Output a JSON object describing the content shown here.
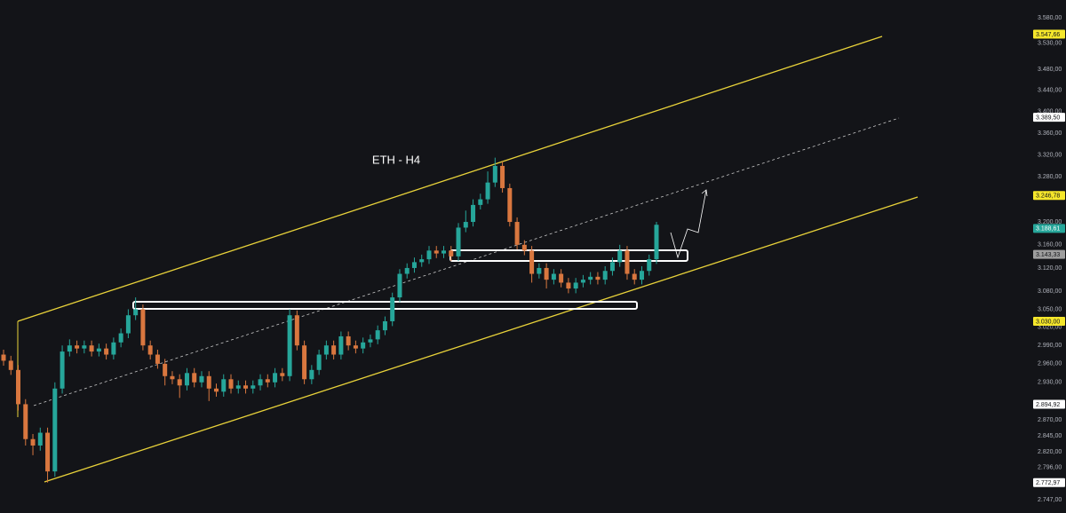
{
  "chart_data": {
    "type": "candlestick",
    "title": "ETH - H4",
    "log": true,
    "ylim": [
      2727,
      3615
    ],
    "up_color": "#26a69a",
    "down_color": "#d9773f",
    "yticks": [
      {
        "value": 3580,
        "label": "3.580,00"
      },
      {
        "value": 3530,
        "label": "3.530,00"
      },
      {
        "value": 3480,
        "label": "3.480,00"
      },
      {
        "value": 3440,
        "label": "3.440,00"
      },
      {
        "value": 3400,
        "label": "3.400,00"
      },
      {
        "value": 3360,
        "label": "3.360,00"
      },
      {
        "value": 3320,
        "label": "3.320,00"
      },
      {
        "value": 3280,
        "label": "3.280,00"
      },
      {
        "value": 3200,
        "label": "3.200,00"
      },
      {
        "value": 3160,
        "label": "3.160,00"
      },
      {
        "value": 3120,
        "label": "3.120,00"
      },
      {
        "value": 3080,
        "label": "3.080,00"
      },
      {
        "value": 3050,
        "label": "3.050,00"
      },
      {
        "value": 3020,
        "label": "3.020,00"
      },
      {
        "value": 2990,
        "label": "2.990,00"
      },
      {
        "value": 2960,
        "label": "2.960,00"
      },
      {
        "value": 2930,
        "label": "2.930,00"
      },
      {
        "value": 2870,
        "label": "2.870,00"
      },
      {
        "value": 2845,
        "label": "2.845,00"
      },
      {
        "value": 2820,
        "label": "2.820,00"
      },
      {
        "value": 2796,
        "label": "2.796,00"
      },
      {
        "value": 2747,
        "label": "2.747,00"
      }
    ],
    "price_labels": [
      {
        "value": 3547.66,
        "label": "3.547,66",
        "color": "#f5e72b"
      },
      {
        "value": 3389.5,
        "label": "3.389,50",
        "color": "#ffffff"
      },
      {
        "value": 3246.78,
        "label": "3.246,78",
        "color": "#f5e72b"
      },
      {
        "value": 3188.61,
        "label": "3.188,61",
        "color": "#26a69a"
      },
      {
        "value": 3143.33,
        "label": "3.143,33",
        "color": "#9e9e9e"
      },
      {
        "value": 3030,
        "label": "3.030,00",
        "color": "#f5e72b"
      },
      {
        "value": 2894.92,
        "label": "2.894,92",
        "color": "#ffffff"
      },
      {
        "value": 2772.97,
        "label": "2.772,97",
        "color": "#ffffff"
      }
    ],
    "open": [
      2975,
      2965,
      2950,
      2895,
      2840,
      2830,
      2850,
      2790,
      2920,
      2980,
      2990,
      2985,
      2990,
      2980,
      2985,
      2975,
      2995,
      3010,
      3040,
      3050,
      2990,
      2975,
      2960,
      2940,
      2935,
      2925,
      2945,
      2930,
      2940,
      2920,
      2915,
      2935,
      2920,
      2925,
      2920,
      2925,
      2935,
      2930,
      2945,
      2940,
      3040,
      2990,
      2935,
      2950,
      2975,
      2990,
      2975,
      3005,
      2990,
      2985,
      2995,
      3000,
      3015,
      3030,
      3070,
      3110,
      3120,
      3130,
      3135,
      3150,
      3145,
      3150,
      3140,
      3190,
      3200,
      3230,
      3240,
      3270,
      3300,
      3260,
      3200,
      3160,
      3150,
      3110,
      3120,
      3100,
      3110,
      3095,
      3085,
      3095,
      3100,
      3105,
      3100,
      3115,
      3130,
      3150,
      3110,
      3100,
      3115,
      3135
    ],
    "high": [
      2983,
      2973,
      2958,
      2903,
      2848,
      2858,
      2858,
      2930,
      2990,
      3000,
      2998,
      2998,
      2998,
      2993,
      2993,
      3003,
      3018,
      3050,
      3070,
      3058,
      2998,
      2983,
      2968,
      2948,
      2943,
      2953,
      2953,
      2948,
      2948,
      2928,
      2943,
      2943,
      2933,
      2933,
      2933,
      2943,
      2943,
      2953,
      2953,
      3050,
      3048,
      2998,
      2958,
      2983,
      2998,
      2998,
      3013,
      3013,
      2998,
      3003,
      3008,
      3023,
      3038,
      3078,
      3118,
      3128,
      3138,
      3143,
      3158,
      3158,
      3158,
      3158,
      3198,
      3220,
      3240,
      3250,
      3290,
      3315,
      3308,
      3268,
      3208,
      3168,
      3158,
      3128,
      3128,
      3118,
      3118,
      3103,
      3103,
      3108,
      3113,
      3113,
      3123,
      3138,
      3160,
      3158,
      3118,
      3123,
      3143,
      3200
    ],
    "low": [
      2957,
      2942,
      2885,
      2830,
      2815,
      2822,
      2773,
      2782,
      2912,
      2972,
      2977,
      2977,
      2972,
      2972,
      2967,
      2967,
      2987,
      3002,
      3032,
      2982,
      2967,
      2952,
      2925,
      2927,
      2905,
      2917,
      2922,
      2922,
      2900,
      2907,
      2907,
      2912,
      2912,
      2912,
      2912,
      2917,
      2922,
      2922,
      2932,
      2932,
      2982,
      2927,
      2927,
      2942,
      2967,
      2967,
      2967,
      2982,
      2977,
      2977,
      2987,
      2992,
      3007,
      3022,
      3062,
      3102,
      3112,
      3122,
      3127,
      3137,
      3137,
      3132,
      3132,
      3182,
      3192,
      3222,
      3232,
      3262,
      3252,
      3192,
      3152,
      3142,
      3095,
      3102,
      3085,
      3092,
      3087,
      3077,
      3077,
      3087,
      3092,
      3092,
      3092,
      3107,
      3122,
      3100,
      3092,
      3092,
      3107,
      3127
    ],
    "close": [
      2965,
      2950,
      2895,
      2840,
      2830,
      2850,
      2790,
      2920,
      2980,
      2990,
      2985,
      2990,
      2980,
      2985,
      2975,
      2995,
      3010,
      3040,
      3050,
      2990,
      2975,
      2960,
      2940,
      2935,
      2925,
      2945,
      2930,
      2940,
      2920,
      2915,
      2935,
      2920,
      2925,
      2920,
      2925,
      2935,
      2930,
      2945,
      2940,
      3040,
      2990,
      2935,
      2950,
      2975,
      2990,
      2975,
      3005,
      2990,
      2985,
      2995,
      3000,
      3015,
      3030,
      3070,
      3110,
      3120,
      3130,
      3135,
      3150,
      3145,
      3150,
      3140,
      3190,
      3200,
      3230,
      3240,
      3270,
      3300,
      3260,
      3200,
      3160,
      3150,
      3110,
      3120,
      3100,
      3110,
      3095,
      3085,
      3095,
      3100,
      3105,
      3100,
      3115,
      3130,
      3150,
      3110,
      3100,
      3115,
      3135,
      3195
    ]
  }
}
